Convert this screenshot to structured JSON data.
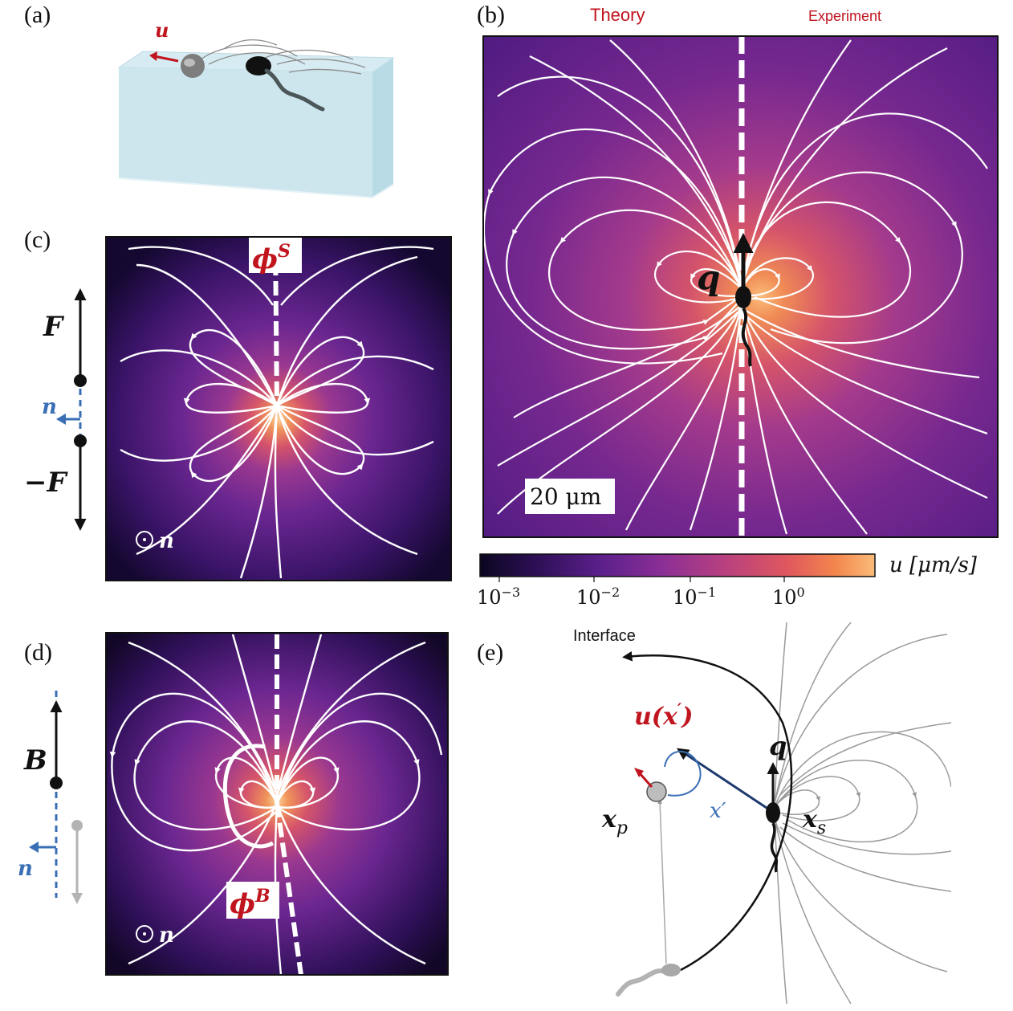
{
  "panels": {
    "a": {
      "label": "(a)",
      "u_label": "u"
    },
    "b": {
      "label": "(b)",
      "theory": "Theory",
      "experiment": "Experiment",
      "q_label": "q",
      "scale_bar": "20 μm"
    },
    "c": {
      "label": "(c)",
      "phi_base": "ϕ",
      "phi_sup": "S",
      "F_pos": "F",
      "F_neg": "−F",
      "n_label": "n",
      "normal_label": "n"
    },
    "d": {
      "label": "(d)",
      "phi_base": "ϕ",
      "phi_sup": "B",
      "B_label": "B",
      "n_label": "n",
      "normal_label": "n"
    },
    "e": {
      "label": "(e)",
      "interface": "Interface",
      "u_base": "u(x",
      "u_prime": "′",
      "u_close": ")",
      "q_label": "q",
      "xp_base": "x",
      "xp_sub": "p",
      "xs_base": "x",
      "xs_sub": "s",
      "xprime": "x′"
    }
  },
  "colorbar": {
    "label": "u [μm/s]",
    "ticks": [
      {
        "base": "10",
        "exp": "−3"
      },
      {
        "base": "10",
        "exp": "−2"
      },
      {
        "base": "10",
        "exp": "−1"
      },
      {
        "base": "10",
        "exp": "0"
      }
    ],
    "stops": [
      "#0b0620",
      "#2d0f55",
      "#5a1f8a",
      "#8a2f96",
      "#b8407f",
      "#e0585e",
      "#f3864d",
      "#fbbc7a"
    ]
  },
  "colors": {
    "red": "#c0141e",
    "blue": "#3a6fb5",
    "navy": "#1e3a6e",
    "water": "#cfe8ef"
  }
}
